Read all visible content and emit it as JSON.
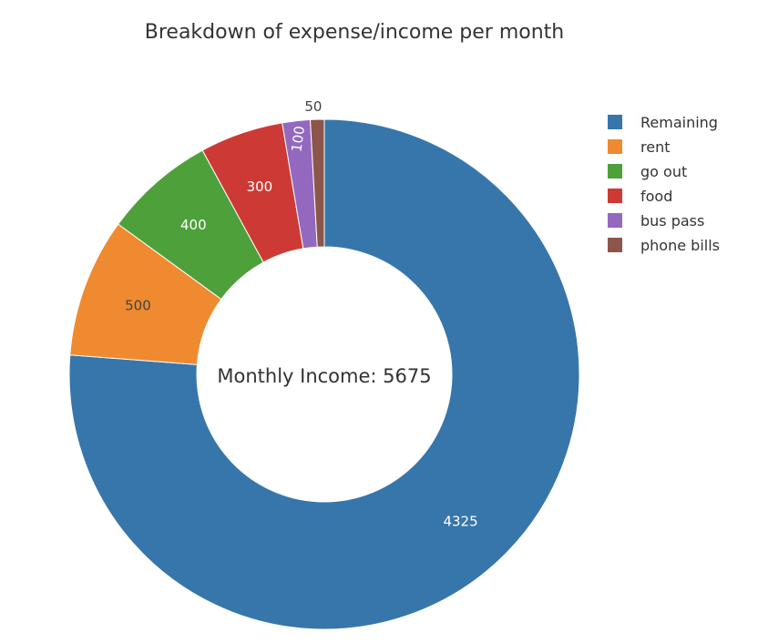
{
  "chart_data": {
    "type": "pie",
    "title": "Breakdown of expense/income per month",
    "center_annotation": "Monthly Income: 5675",
    "hole": true,
    "sort": "descending",
    "legend_position": "right",
    "slices": [
      {
        "label": "Remaining",
        "value": 4325,
        "color": "#3776ab",
        "text_color": "#ffffff"
      },
      {
        "label": "rent",
        "value": 500,
        "color": "#ef8a31",
        "text_color": "#444444"
      },
      {
        "label": "go out",
        "value": 400,
        "color": "#4ea03a",
        "text_color": "#ffffff"
      },
      {
        "label": "food",
        "value": 300,
        "color": "#cd3a35",
        "text_color": "#ffffff"
      },
      {
        "label": "bus pass",
        "value": 100,
        "color": "#9369bf",
        "text_color": "#ffffff"
      },
      {
        "label": "phone bills",
        "value": 50,
        "color": "#8c564b",
        "text_color": "#444444"
      }
    ]
  }
}
